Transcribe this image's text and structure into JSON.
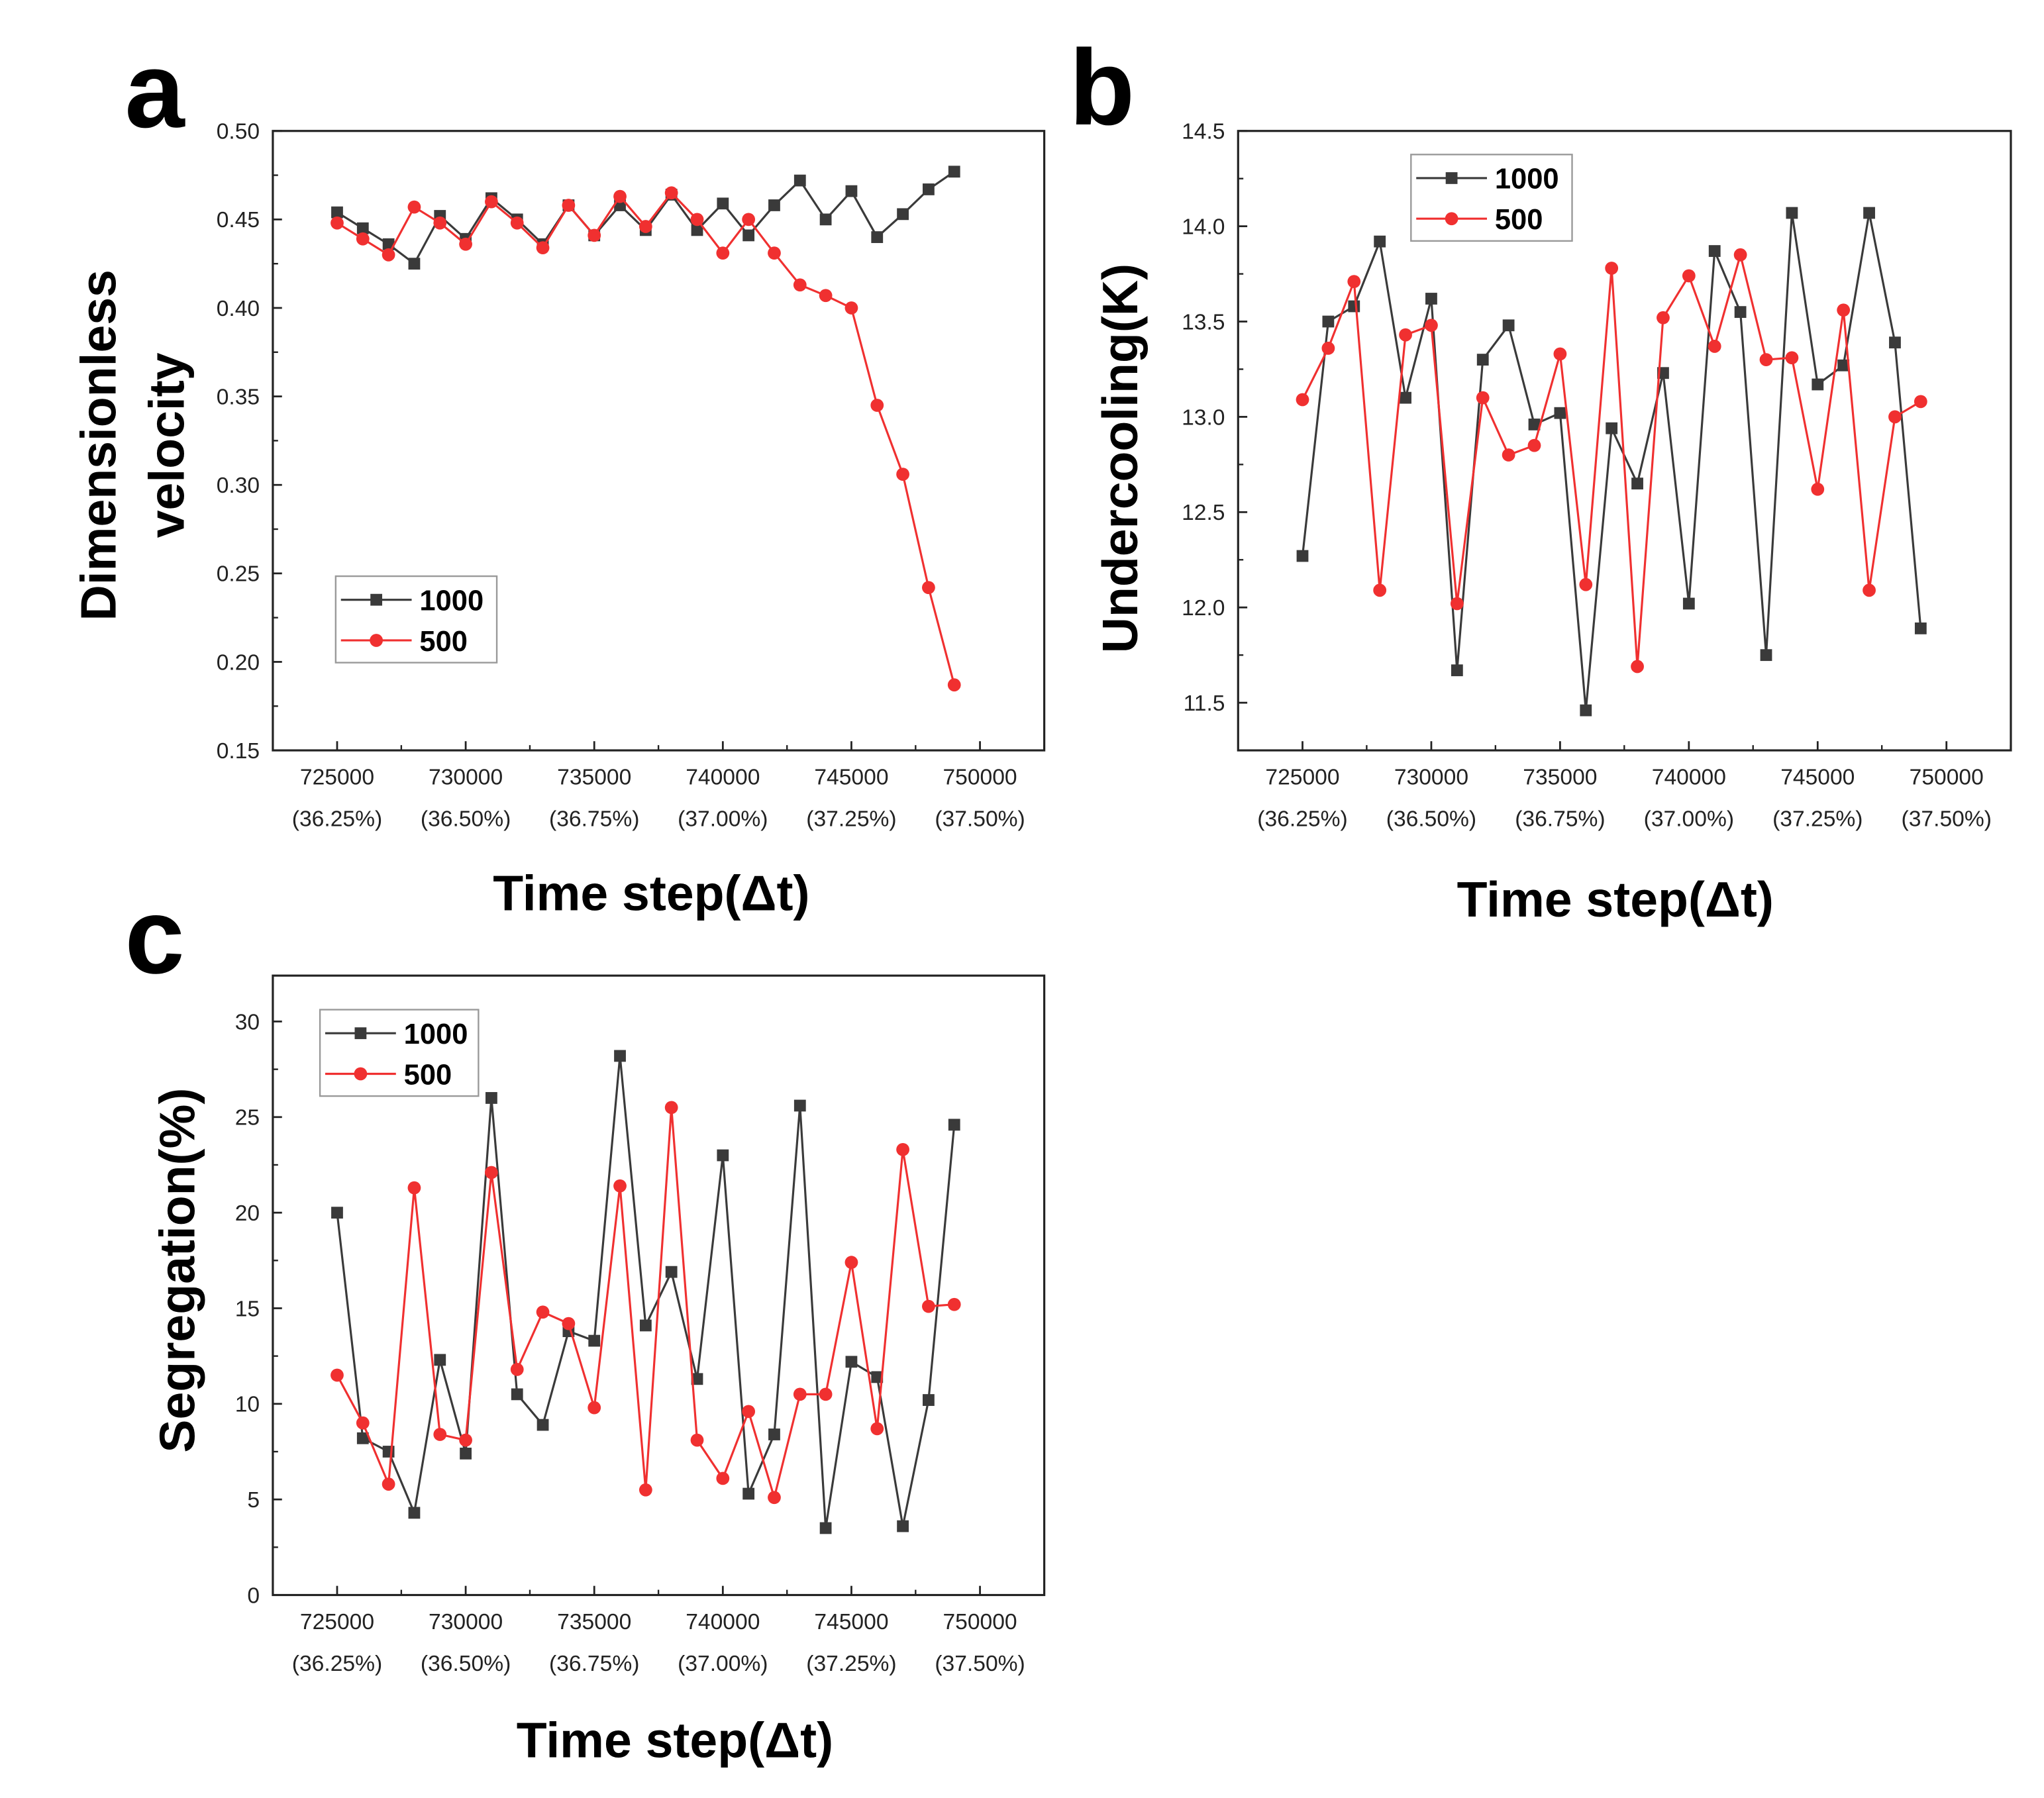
{
  "chart_data": [
    {
      "type": "line",
      "panel_label": "a",
      "xlabel": "Time step(Δt)",
      "ylabel": [
        "Dimensionless",
        "velocity"
      ],
      "ylim": [
        0.15,
        0.5
      ],
      "xlim": [
        722500,
        752500
      ],
      "yticks": [
        "0.15",
        "0.20",
        "0.25",
        "0.30",
        "0.35",
        "0.40",
        "0.45",
        "0.50"
      ],
      "xticks": [
        {
          "value": "725000",
          "pct": "(36.25%)"
        },
        {
          "value": "730000",
          "pct": "(36.50%)"
        },
        {
          "value": "735000",
          "pct": "(36.75%)"
        },
        {
          "value": "740000",
          "pct": "(37.00%)"
        },
        {
          "value": "745000",
          "pct": "(37.25%)"
        },
        {
          "value": "750000",
          "pct": "(37.50%)"
        }
      ],
      "legend_position": "bottom-left",
      "x": [
        725000,
        726000,
        727000,
        728000,
        729000,
        730000,
        731000,
        732000,
        733000,
        734000,
        735000,
        736000,
        737000,
        738000,
        739000,
        740000,
        741000,
        742000,
        743000,
        744000,
        745000,
        746000,
        747000,
        748000,
        749000
      ],
      "series": [
        {
          "name": "1000",
          "color": "#3a3a3a",
          "marker": "square",
          "values": [
            0.454,
            0.445,
            0.436,
            0.425,
            0.452,
            0.439,
            0.462,
            0.45,
            0.436,
            0.458,
            0.441,
            0.458,
            0.444,
            0.464,
            0.444,
            0.459,
            0.441,
            0.458,
            0.472,
            0.45,
            0.466,
            0.44,
            0.453,
            0.467,
            0.477
          ]
        },
        {
          "name": "500",
          "color": "#f03030",
          "marker": "circle",
          "values": [
            0.448,
            0.439,
            0.43,
            0.457,
            0.448,
            0.436,
            0.46,
            0.448,
            0.434,
            0.458,
            0.441,
            0.463,
            0.446,
            0.465,
            0.45,
            0.431,
            0.45,
            0.431,
            0.413,
            0.407,
            0.4,
            0.345,
            0.306,
            0.242,
            0.187
          ]
        }
      ]
    },
    {
      "type": "line",
      "panel_label": "b",
      "xlabel": "Time step(Δt)",
      "ylabel": [
        "Undercooling(K)"
      ],
      "ylim": [
        11.25,
        14.5
      ],
      "xlim": [
        722500,
        752500
      ],
      "yticks": [
        "11.5",
        "12.0",
        "12.5",
        "13.0",
        "13.5",
        "14.0",
        "14.5"
      ],
      "xticks": [
        {
          "value": "725000",
          "pct": "(36.25%)"
        },
        {
          "value": "730000",
          "pct": "(36.50%)"
        },
        {
          "value": "735000",
          "pct": "(36.75%)"
        },
        {
          "value": "740000",
          "pct": "(37.00%)"
        },
        {
          "value": "745000",
          "pct": "(37.25%)"
        },
        {
          "value": "750000",
          "pct": "(37.50%)"
        }
      ],
      "legend_position": "top-left",
      "x": [
        725000,
        726000,
        727000,
        728000,
        729000,
        730000,
        731000,
        732000,
        733000,
        734000,
        735000,
        736000,
        737000,
        738000,
        739000,
        740000,
        741000,
        742000,
        743000,
        744000,
        745000,
        746000,
        747000,
        748000,
        749000
      ],
      "series": [
        {
          "name": "1000",
          "color": "#3a3a3a",
          "marker": "square",
          "values": [
            12.27,
            13.5,
            13.58,
            13.92,
            13.1,
            13.62,
            11.67,
            13.3,
            13.48,
            12.96,
            13.02,
            11.46,
            12.94,
            12.65,
            13.23,
            12.02,
            13.87,
            13.55,
            11.75,
            14.07,
            13.17,
            13.27,
            14.07,
            13.39,
            11.89
          ]
        },
        {
          "name": "500",
          "color": "#f03030",
          "marker": "circle",
          "values": [
            13.09,
            13.36,
            13.71,
            12.09,
            13.43,
            13.48,
            12.02,
            13.1,
            12.8,
            12.85,
            13.33,
            12.12,
            13.78,
            11.69,
            13.52,
            13.74,
            13.37,
            13.85,
            13.3,
            13.31,
            12.62,
            13.56,
            12.09,
            13.0,
            13.08
          ]
        }
      ]
    },
    {
      "type": "line",
      "panel_label": "c",
      "xlabel": "Time step(Δt)",
      "ylabel": [
        "Segregation(%)"
      ],
      "ylim": [
        0,
        32.4
      ],
      "xlim": [
        722500,
        752500
      ],
      "yticks": [
        "0",
        "5",
        "10",
        "15",
        "20",
        "25",
        "30"
      ],
      "xticks": [
        {
          "value": "725000",
          "pct": "(36.25%)"
        },
        {
          "value": "730000",
          "pct": "(36.50%)"
        },
        {
          "value": "735000",
          "pct": "(36.75%)"
        },
        {
          "value": "740000",
          "pct": "(37.00%)"
        },
        {
          "value": "745000",
          "pct": "(37.25%)"
        },
        {
          "value": "750000",
          "pct": "(37.50%)"
        }
      ],
      "legend_position": "top-left",
      "x": [
        725000,
        726000,
        727000,
        728000,
        729000,
        730000,
        731000,
        732000,
        733000,
        734000,
        735000,
        736000,
        737000,
        738000,
        739000,
        740000,
        741000,
        742000,
        743000,
        744000,
        745000,
        746000,
        747000,
        748000,
        749000
      ],
      "series": [
        {
          "name": "1000",
          "color": "#3a3a3a",
          "marker": "square",
          "values": [
            20.0,
            8.2,
            7.5,
            4.3,
            12.3,
            7.4,
            26.0,
            10.5,
            8.9,
            13.8,
            13.3,
            28.2,
            14.1,
            16.9,
            11.3,
            23.0,
            5.3,
            8.4,
            25.6,
            3.5,
            12.2,
            11.4,
            3.6,
            10.2,
            24.6
          ]
        },
        {
          "name": "500",
          "color": "#f03030",
          "marker": "circle",
          "values": [
            11.5,
            9.0,
            5.8,
            21.3,
            8.4,
            8.1,
            22.1,
            11.8,
            14.8,
            14.2,
            9.8,
            21.4,
            5.5,
            25.5,
            8.1,
            6.1,
            9.6,
            5.1,
            10.5,
            10.5,
            17.4,
            8.7,
            23.3,
            15.1,
            15.2
          ]
        }
      ]
    }
  ]
}
